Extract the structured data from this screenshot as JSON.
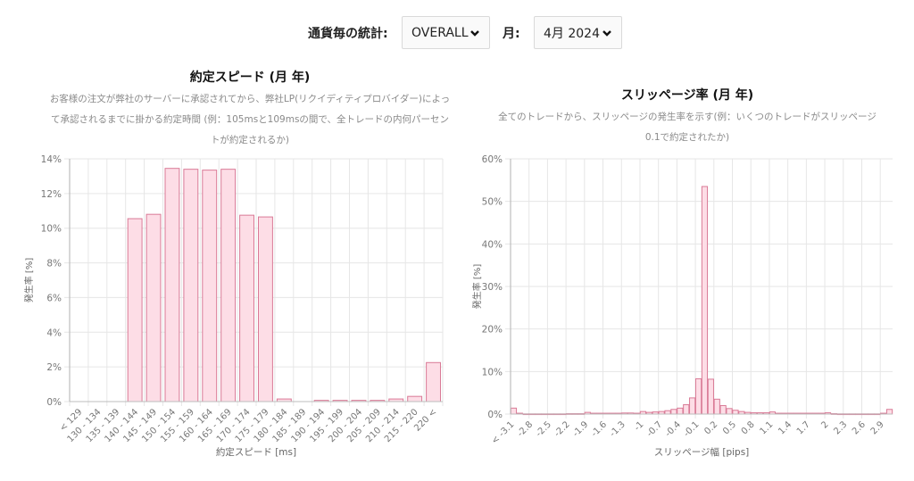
{
  "filters": {
    "currency_label": "通貨毎の統計:",
    "currency_value": "OVERALL",
    "month_label": "月:",
    "month_value": "4月 2024"
  },
  "colors": {
    "bar_fill": "#fddde6",
    "bar_stroke": "#d97a96",
    "grid": "#e6e6e6",
    "axis": "#bdbdbd",
    "tick_text": "#777777"
  },
  "charts": {
    "speed": {
      "title": "約定スピード (月 年)",
      "description": "お客様の注文が弊社のサーバーに承認されてから、弊社LP(リクイディティプロバイダー)によって承認されるまでに掛かる約定時間 (例：105msと109msの間で、全トレードの内何パーセントが約定されるか)",
      "xlabel": "約定スピード [ms]",
      "ylabel": "発生率 [%]"
    },
    "slippage": {
      "title": "スリッページ率 (月 年)",
      "description": "全てのトレードから、スリッページの発生率を示す(例：いくつのトレードがスリッページ0.1で約定されたか)",
      "xlabel": "スリッページ幅 [pips]",
      "ylabel": "発生率 [%]"
    }
  },
  "chart_data": [
    {
      "type": "bar",
      "title": "約定スピード (月 年)",
      "xlabel": "約定スピード [ms]",
      "ylabel": "発生率 [%]",
      "ylim": [
        0,
        14
      ],
      "yticks": [
        "0%",
        "2%",
        "4%",
        "6%",
        "8%",
        "10%",
        "12%",
        "14%"
      ],
      "grid": true,
      "categories": [
        "< 129",
        "130 - 134",
        "135 - 139",
        "140 - 144",
        "145 - 149",
        "150 - 154",
        "155 - 159",
        "160 - 164",
        "165 - 169",
        "170 - 174",
        "175 - 179",
        "180 - 184",
        "185 - 189",
        "190 - 194",
        "195 - 199",
        "200 - 204",
        "205 - 209",
        "210 - 214",
        "215 - 220",
        "220 <"
      ],
      "values": [
        0,
        0,
        0,
        10.55,
        10.8,
        13.45,
        13.4,
        13.35,
        13.4,
        10.75,
        10.65,
        0.15,
        0,
        0.07,
        0.07,
        0.07,
        0.07,
        0.15,
        0.3,
        2.25
      ]
    },
    {
      "type": "bar",
      "title": "スリッページ率 (月 年)",
      "xlabel": "スリッページ幅 [pips]",
      "ylabel": "発生率 [%]",
      "ylim": [
        0,
        60
      ],
      "yticks": [
        "0%",
        "10%",
        "20%",
        "30%",
        "40%",
        "50%",
        "60%"
      ],
      "grid": true,
      "tick_labels": [
        "< -3.1",
        "-2.8",
        "-2.5",
        "-2.2",
        "-1.9",
        "-1.6",
        "-1.3",
        "-1",
        "-0.7",
        "-0.4",
        "-0.1",
        "0.2",
        "0.5",
        "0.8",
        "1.1",
        "1.4",
        "1.7",
        "2",
        "2.3",
        "2.6",
        "2.9"
      ],
      "categories": [
        "< -3.1",
        "-3",
        "-2.9",
        "-2.8",
        "-2.7",
        "-2.6",
        "-2.5",
        "-2.4",
        "-2.3",
        "-2.2",
        "-2.1",
        "-2",
        "-1.9",
        "-1.8",
        "-1.7",
        "-1.6",
        "-1.5",
        "-1.4",
        "-1.3",
        "-1.2",
        "-1.1",
        "-1",
        "-0.9",
        "-0.8",
        "-0.7",
        "-0.6",
        "-0.5",
        "-0.4",
        "-0.3",
        "-0.2",
        "-0.1",
        "0",
        "0.1",
        "0.2",
        "0.3",
        "0.4",
        "0.5",
        "0.6",
        "0.7",
        "0.8",
        "0.9",
        "1",
        "1.1",
        "1.2",
        "1.3",
        "1.4",
        "1.5",
        "1.6",
        "1.7",
        "1.8",
        "1.9",
        "2",
        "2.1",
        "2.2",
        "2.3",
        "2.4",
        "2.5",
        "2.6",
        "2.7",
        "2.8",
        "2.9",
        "3 <"
      ],
      "values": [
        1.4,
        0.2,
        0.05,
        0.05,
        0.05,
        0.05,
        0.05,
        0.05,
        0.05,
        0.1,
        0.1,
        0.1,
        0.4,
        0.2,
        0.2,
        0.2,
        0.2,
        0.2,
        0.25,
        0.25,
        0.2,
        0.6,
        0.4,
        0.5,
        0.6,
        0.8,
        1.1,
        1.4,
        2.2,
        3.8,
        8.3,
        53.5,
        8.2,
        3.5,
        2.0,
        1.3,
        0.9,
        0.6,
        0.4,
        0.3,
        0.3,
        0.3,
        0.5,
        0.2,
        0.2,
        0.2,
        0.2,
        0.2,
        0.2,
        0.2,
        0.2,
        0.3,
        0.1,
        0.05,
        0.05,
        0.05,
        0.05,
        0.05,
        0.05,
        0.05,
        0.2,
        1.1
      ]
    }
  ]
}
